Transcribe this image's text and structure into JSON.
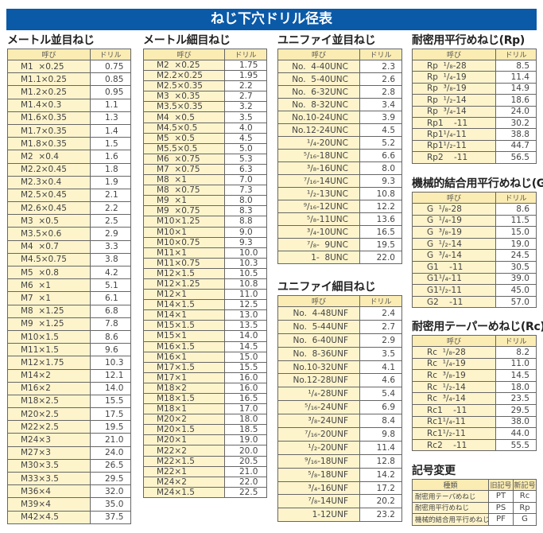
{
  "title": "ねじ下穴ドリル径表",
  "col_headers": {
    "name": "呼び",
    "drill": "ドリル"
  },
  "tables": [
    {
      "id": "metric-coarse",
      "title": "メートル並目ねじ",
      "rows": [
        [
          "M1  ×0.25",
          "0.75"
        ],
        [
          "M1.1×0.25",
          "0.85"
        ],
        [
          "M1.2×0.25",
          "0.95"
        ],
        [
          "M1.4×0.3",
          "1.1"
        ],
        [
          "M1.6×0.35",
          "1.3"
        ],
        [
          "M1.7×0.35",
          "1.4"
        ],
        [
          "M1.8×0.35",
          "1.5"
        ],
        [
          "M2  ×0.4",
          "1.6"
        ],
        [
          "M2.2×0.45",
          "1.8"
        ],
        [
          "M2.3×0.4",
          "1.9"
        ],
        [
          "M2.5×0.45",
          "2.1"
        ],
        [
          "M2.6×0.45",
          "2.2"
        ],
        [
          "M3  ×0.5",
          "2.5"
        ],
        [
          "M3.5×0.6",
          "2.9"
        ],
        [
          "M4  ×0.7",
          "3.3"
        ],
        [
          "M4.5×0.75",
          "3.8"
        ],
        [
          "M5  ×0.8",
          "4.2"
        ],
        [
          "M6  ×1",
          "5.1"
        ],
        [
          "M7  ×1",
          "6.1"
        ],
        [
          "M8  ×1.25",
          "6.8"
        ],
        [
          "M9  ×1.25",
          "7.8"
        ],
        [
          "M10×1.5",
          "8.6"
        ],
        [
          "M11×1.5",
          "9.6"
        ],
        [
          "M12×1.75",
          "10.3"
        ],
        [
          "M14×2",
          "12.1"
        ],
        [
          "M16×2",
          "14.0"
        ],
        [
          "M18×2.5",
          "15.5"
        ],
        [
          "M20×2.5",
          "17.5"
        ],
        [
          "M22×2.5",
          "19.5"
        ],
        [
          "M24×3",
          "21.0"
        ],
        [
          "M27×3",
          "24.0"
        ],
        [
          "M30×3.5",
          "26.5"
        ],
        [
          "M33×3.5",
          "29.5"
        ],
        [
          "M36×4",
          "32.0"
        ],
        [
          "M39×4",
          "35.0"
        ],
        [
          "M42×4.5",
          "37.5"
        ]
      ]
    },
    {
      "id": "metric-fine",
      "title": "メートル細目ねじ",
      "rows": [
        [
          "M2  ×0.25",
          "1.75"
        ],
        [
          "M2.2×0.25",
          "1.95"
        ],
        [
          "M2.5×0.35",
          "2.2"
        ],
        [
          "M3  ×0.35",
          "2.7"
        ],
        [
          "M3.5×0.35",
          "3.2"
        ],
        [
          "M4  ×0.5",
          "3.5"
        ],
        [
          "M4.5×0.5",
          "4.0"
        ],
        [
          "M5  ×0.5",
          "4.5"
        ],
        [
          "M5.5×0.5",
          "5.0"
        ],
        [
          "M6  ×0.75",
          "5.3"
        ],
        [
          "M7  ×0.75",
          "6.3"
        ],
        [
          "M8  ×1",
          "7.0"
        ],
        [
          "M8  ×0.75",
          "7.3"
        ],
        [
          "M9  ×1",
          "8.0"
        ],
        [
          "M9  ×0.75",
          "8.3"
        ],
        [
          "M10×1.25",
          "8.8"
        ],
        [
          "M10×1",
          "9.0"
        ],
        [
          "M10×0.75",
          "9.3"
        ],
        [
          "M11×1",
          "10.0"
        ],
        [
          "M11×0.75",
          "10.3"
        ],
        [
          "M12×1.5",
          "10.5"
        ],
        [
          "M12×1.25",
          "10.8"
        ],
        [
          "M12×1",
          "11.0"
        ],
        [
          "M14×1.5",
          "12.5"
        ],
        [
          "M14×1",
          "13.0"
        ],
        [
          "M15×1.5",
          "13.5"
        ],
        [
          "M15×1",
          "14.0"
        ],
        [
          "M16×1.5",
          "14.5"
        ],
        [
          "M16×1",
          "15.0"
        ],
        [
          "M17×1.5",
          "15.5"
        ],
        [
          "M17×1",
          "16.0"
        ],
        [
          "M18×2",
          "16.0"
        ],
        [
          "M18×1.5",
          "16.5"
        ],
        [
          "M18×1",
          "17.0"
        ],
        [
          "M20×2",
          "18.0"
        ],
        [
          "M20×1.5",
          "18.5"
        ],
        [
          "M20×1",
          "19.0"
        ],
        [
          "M22×2",
          "20.0"
        ],
        [
          "M22×1.5",
          "20.5"
        ],
        [
          "M22×1",
          "21.0"
        ],
        [
          "M24×2",
          "22.0"
        ],
        [
          "M24×1.5",
          "22.5"
        ]
      ]
    },
    {
      "id": "unc",
      "title": "ユニファイ並目ねじ",
      "rows": [
        [
          "No.  4-40UNC",
          "2.3"
        ],
        [
          "No.  5-40UNC",
          "2.6"
        ],
        [
          "No.  6-32UNC",
          "2.8"
        ],
        [
          "No.  8-32UNC",
          "3.4"
        ],
        [
          "No.10-24UNC",
          "3.9"
        ],
        [
          "No.12-24UNC",
          "4.5"
        ],
        [
          "¹/₄-20UNC",
          "5.2"
        ],
        [
          "⁵/₁₆-18UNC",
          "6.6"
        ],
        [
          "³/₈-16UNC",
          "8.0"
        ],
        [
          "⁷/₁₆-14UNC",
          "9.3"
        ],
        [
          "¹/₂-13UNC",
          "10.8"
        ],
        [
          "⁹/₁₆-12UNC",
          "12.2"
        ],
        [
          "⁵/₈-11UNC",
          "13.6"
        ],
        [
          "³/₄-10UNC",
          "16.5"
        ],
        [
          "⁷/₈-  9UNC",
          "19.5"
        ],
        [
          "1-  8UNC",
          "22.0"
        ]
      ]
    },
    {
      "id": "unf",
      "title": "ユニファイ細目ねじ",
      "rows": [
        [
          "No.  4-48UNF",
          "2.4"
        ],
        [
          "No.  5-44UNF",
          "2.7"
        ],
        [
          "No.  6-40UNF",
          "2.9"
        ],
        [
          "No.  8-36UNF",
          "3.5"
        ],
        [
          "No.10-32UNF",
          "4.1"
        ],
        [
          "No.12-28UNF",
          "4.6"
        ],
        [
          "¹/₄-28UNF",
          "5.4"
        ],
        [
          "⁵/₁₆-24UNF",
          "6.9"
        ],
        [
          "³/₈-24UNF",
          "8.4"
        ],
        [
          "⁷/₁₆-20UNF",
          "9.8"
        ],
        [
          "¹/₂-20UNF",
          "11.4"
        ],
        [
          "⁹/₁₆-18UNF",
          "12.8"
        ],
        [
          "⁵/₈-18UNF",
          "14.2"
        ],
        [
          "³/₄-16UNF",
          "17.2"
        ],
        [
          "⁷/₈-14UNF",
          "20.2"
        ],
        [
          "1-12UNF",
          "23.2"
        ]
      ]
    },
    {
      "id": "rp",
      "title": "耐密用平行めねじ(Rp)",
      "rows": [
        [
          "Rp  ¹/₈-28",
          "8.5"
        ],
        [
          "Rp  ¹/₄-19",
          "11.4"
        ],
        [
          "Rp  ³/₈-19",
          "14.9"
        ],
        [
          "Rp  ¹/₂-14",
          "18.6"
        ],
        [
          "Rp  ³/₄-14",
          "24.0"
        ],
        [
          "Rp1    -11",
          "30.2"
        ],
        [
          "Rp1¹/₄-11",
          "38.8"
        ],
        [
          "Rp1¹/₂-11",
          "44.7"
        ],
        [
          "Rp2    -11",
          "56.5"
        ]
      ]
    },
    {
      "id": "g",
      "title": "機械的結合用平行めねじ(G)",
      "rows": [
        [
          "G  ¹/₈-28",
          "8.6"
        ],
        [
          "G  ¹/₄-19",
          "11.5"
        ],
        [
          "G  ³/₈-19",
          "15.0"
        ],
        [
          "G  ¹/₂-14",
          "19.0"
        ],
        [
          "G  ³/₄-14",
          "24.5"
        ],
        [
          "G1    -11",
          "30.5"
        ],
        [
          "G1¹/₄-11",
          "39.0"
        ],
        [
          "G1¹/₂-11",
          "45.0"
        ],
        [
          "G2    -11",
          "57.0"
        ]
      ]
    },
    {
      "id": "rc",
      "title": "耐密用テーパーめねじ(Rc)",
      "rows": [
        [
          "Rc  ¹/₈-28",
          "8.2"
        ],
        [
          "Rc  ¹/₄-19",
          "11.0"
        ],
        [
          "Rc  ³/₈-19",
          "14.5"
        ],
        [
          "Rc  ¹/₂-14",
          "18.0"
        ],
        [
          "Rc  ³/₄-14",
          "23.5"
        ],
        [
          "Rc1    -11",
          "29.5"
        ],
        [
          "Rc1¹/₄-11",
          "38.0"
        ],
        [
          "Rc1¹/₂-11",
          "44.0"
        ],
        [
          "Rc2    -11",
          "55.5"
        ]
      ]
    }
  ],
  "symbol_change": {
    "title": "記号変更",
    "headers": [
      "種類",
      "旧記号",
      "新記号"
    ],
    "rows": [
      [
        "耐密用テーパめねじ",
        "PT",
        "Rc"
      ],
      [
        "耐密用平行めねじ",
        "PS",
        "Rp"
      ],
      [
        "機械的結合用平行めねじ",
        "PF",
        "G"
      ]
    ]
  },
  "colors": {
    "title_bar": "#0a5aa8",
    "name_cell": "#fdf4cc",
    "header_cell": "#fbecb3"
  }
}
